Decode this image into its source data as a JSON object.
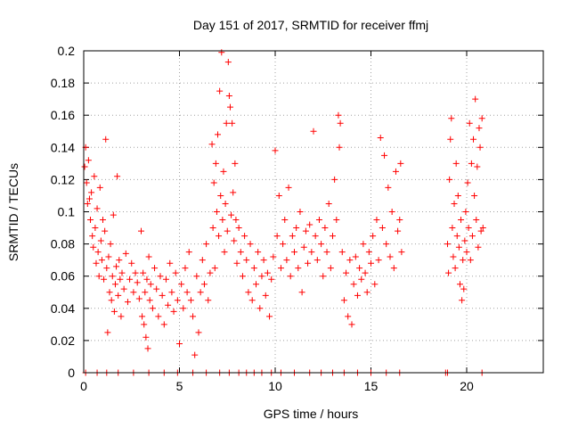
{
  "chart_data": {
    "type": "scatter",
    "title": "Day 151 of 2017, SRMTID for receiver ffmj",
    "xlabel": "GPS time / hours",
    "ylabel": "SRMTID / TECUs",
    "xlim": [
      0,
      24
    ],
    "ylim": [
      0,
      0.2
    ],
    "x_ticks": [
      0,
      5,
      10,
      15,
      20
    ],
    "x_tick_labels": [
      "0",
      "5",
      "10",
      "15",
      "20"
    ],
    "y_ticks": [
      0,
      0.02,
      0.04,
      0.06,
      0.08,
      0.1,
      0.12,
      0.14,
      0.16,
      0.18,
      0.2
    ],
    "y_tick_labels": [
      "0",
      "0.02",
      "0.04",
      "0.06",
      "0.08",
      "0.1",
      "0.12",
      "0.14",
      "0.16",
      "0.18",
      "0.2"
    ],
    "grid": true,
    "marker": "+",
    "color": "#ff0000",
    "series": [
      {
        "name": "SRMTID",
        "points": [
          [
            0.05,
            0.128
          ],
          [
            0.1,
            0.14
          ],
          [
            0.15,
            0.118
          ],
          [
            0.2,
            0.105
          ],
          [
            0.25,
            0.132
          ],
          [
            0.3,
            0.108
          ],
          [
            0.35,
            0.095
          ],
          [
            0.4,
            0.112
          ],
          [
            0.45,
            0.085
          ],
          [
            0.5,
            0.078
          ],
          [
            0.55,
            0.122
          ],
          [
            0.6,
            0.09
          ],
          [
            0.65,
            0.068
          ],
          [
            0.7,
            0.102
          ],
          [
            0.75,
            0.075
          ],
          [
            0.8,
            0.06
          ],
          [
            0.85,
            0.115
          ],
          [
            0.9,
            0.082
          ],
          [
            0.95,
            0.07
          ],
          [
            1.0,
            0.095
          ],
          [
            1.05,
            0.058
          ],
          [
            1.1,
            0.088
          ],
          [
            1.15,
            0.145
          ],
          [
            1.2,
            0.065
          ],
          [
            1.25,
            0.025
          ],
          [
            1.3,
            0.072
          ],
          [
            1.35,
            0.05
          ],
          [
            1.4,
            0.08
          ],
          [
            1.45,
            0.045
          ],
          [
            1.5,
            0.06
          ],
          [
            1.55,
            0.098
          ],
          [
            1.6,
            0.038
          ],
          [
            1.65,
            0.055
          ],
          [
            1.7,
            0.066
          ],
          [
            1.75,
            0.122
          ],
          [
            1.8,
            0.048
          ],
          [
            1.85,
            0.07
          ],
          [
            1.9,
            0.058
          ],
          [
            1.95,
            0.035
          ],
          [
            2.0,
            0.062
          ],
          [
            2.1,
            0.052
          ],
          [
            2.2,
            0.074
          ],
          [
            2.3,
            0.044
          ],
          [
            2.4,
            0.058
          ],
          [
            2.5,
            0.068
          ],
          [
            2.6,
            0.05
          ],
          [
            2.7,
            0.062
          ],
          [
            2.8,
            0.056
          ],
          [
            2.9,
            0.046
          ],
          [
            3.0,
            0.088
          ],
          [
            3.05,
            0.035
          ],
          [
            3.1,
            0.062
          ],
          [
            3.15,
            0.03
          ],
          [
            3.2,
            0.05
          ],
          [
            3.25,
            0.022
          ],
          [
            3.3,
            0.058
          ],
          [
            3.35,
            0.015
          ],
          [
            3.4,
            0.072
          ],
          [
            3.45,
            0.045
          ],
          [
            3.5,
            0.055
          ],
          [
            3.6,
            0.04
          ],
          [
            3.7,
            0.065
          ],
          [
            3.8,
            0.052
          ],
          [
            3.9,
            0.035
          ],
          [
            4.0,
            0.06
          ],
          [
            4.1,
            0.048
          ],
          [
            4.2,
            0.03
          ],
          [
            4.3,
            0.058
          ],
          [
            4.4,
            0.042
          ],
          [
            4.5,
            0.068
          ],
          [
            4.6,
            0.05
          ],
          [
            4.7,
            0.038
          ],
          [
            4.8,
            0.062
          ],
          [
            4.9,
            0.045
          ],
          [
            5.0,
            0.018
          ],
          [
            5.1,
            0.055
          ],
          [
            5.2,
            0.04
          ],
          [
            5.3,
            0.065
          ],
          [
            5.4,
            0.05
          ],
          [
            5.5,
            0.075
          ],
          [
            5.6,
            0.045
          ],
          [
            5.7,
            0.035
          ],
          [
            5.8,
            0.011
          ],
          [
            5.9,
            0.06
          ],
          [
            6.0,
            0.025
          ],
          [
            6.1,
            0.05
          ],
          [
            6.2,
            0.07
          ],
          [
            6.3,
            0.055
          ],
          [
            6.4,
            0.08
          ],
          [
            6.5,
            0.045
          ],
          [
            6.6,
            0.062
          ],
          [
            6.7,
            0.142
          ],
          [
            6.75,
            0.09
          ],
          [
            6.8,
            0.118
          ],
          [
            6.85,
            0.065
          ],
          [
            6.9,
            0.13
          ],
          [
            6.95,
            0.1
          ],
          [
            7.0,
            0.148
          ],
          [
            7.05,
            0.085
          ],
          [
            7.1,
            0.175
          ],
          [
            7.15,
            0.11
          ],
          [
            7.2,
            0.199
          ],
          [
            7.25,
            0.095
          ],
          [
            7.3,
            0.125
          ],
          [
            7.35,
            0.075
          ],
          [
            7.4,
            0.105
          ],
          [
            7.45,
            0.155
          ],
          [
            7.5,
            0.088
          ],
          [
            7.55,
            0.193
          ],
          [
            7.6,
            0.172
          ],
          [
            7.65,
            0.165
          ],
          [
            7.7,
            0.098
          ],
          [
            7.75,
            0.155
          ],
          [
            7.8,
            0.112
          ],
          [
            7.85,
            0.082
          ],
          [
            7.9,
            0.13
          ],
          [
            7.95,
            0.095
          ],
          [
            8.0,
            0.068
          ],
          [
            8.1,
            0.09
          ],
          [
            8.2,
            0.075
          ],
          [
            8.3,
            0.06
          ],
          [
            8.4,
            0.085
          ],
          [
            8.5,
            0.07
          ],
          [
            8.6,
            0.05
          ],
          [
            8.7,
            0.08
          ],
          [
            8.8,
            0.045
          ],
          [
            8.9,
            0.065
          ],
          [
            9.0,
            0.055
          ],
          [
            9.1,
            0.075
          ],
          [
            9.2,
            0.04
          ],
          [
            9.3,
            0.06
          ],
          [
            9.4,
            0.07
          ],
          [
            9.5,
            0.048
          ],
          [
            9.6,
            0.062
          ],
          [
            9.7,
            0.035
          ],
          [
            9.8,
            0.058
          ],
          [
            9.9,
            0.072
          ],
          [
            10.0,
            0.138
          ],
          [
            10.1,
            0.085
          ],
          [
            10.2,
            0.11
          ],
          [
            10.3,
            0.065
          ],
          [
            10.4,
            0.08
          ],
          [
            10.5,
            0.095
          ],
          [
            10.6,
            0.07
          ],
          [
            10.7,
            0.115
          ],
          [
            10.8,
            0.06
          ],
          [
            10.9,
            0.085
          ],
          [
            11.0,
            0.075
          ],
          [
            11.1,
            0.09
          ],
          [
            11.2,
            0.065
          ],
          [
            11.3,
            0.1
          ],
          [
            11.4,
            0.05
          ],
          [
            11.5,
            0.078
          ],
          [
            11.6,
            0.088
          ],
          [
            11.7,
            0.068
          ],
          [
            11.8,
            0.092
          ],
          [
            11.9,
            0.075
          ],
          [
            12.0,
            0.15
          ],
          [
            12.1,
            0.085
          ],
          [
            12.2,
            0.07
          ],
          [
            12.3,
            0.095
          ],
          [
            12.4,
            0.08
          ],
          [
            12.5,
            0.06
          ],
          [
            12.6,
            0.09
          ],
          [
            12.7,
            0.075
          ],
          [
            12.8,
            0.105
          ],
          [
            12.9,
            0.065
          ],
          [
            13.0,
            0.085
          ],
          [
            13.1,
            0.12
          ],
          [
            13.2,
            0.095
          ],
          [
            13.3,
            0.16
          ],
          [
            13.35,
            0.14
          ],
          [
            13.4,
            0.155
          ],
          [
            13.5,
            0.075
          ],
          [
            13.6,
            0.045
          ],
          [
            13.7,
            0.062
          ],
          [
            13.8,
            0.035
          ],
          [
            13.9,
            0.07
          ],
          [
            14.0,
            0.03
          ],
          [
            14.1,
            0.055
          ],
          [
            14.2,
            0.072
          ],
          [
            14.3,
            0.048
          ],
          [
            14.4,
            0.065
          ],
          [
            14.5,
            0.058
          ],
          [
            14.6,
            0.08
          ],
          [
            14.7,
            0.062
          ],
          [
            14.8,
            0.05
          ],
          [
            14.9,
            0.075
          ],
          [
            15.0,
            0.068
          ],
          [
            15.1,
            0.085
          ],
          [
            15.2,
            0.055
          ],
          [
            15.3,
            0.095
          ],
          [
            15.4,
            0.07
          ],
          [
            15.5,
            0.146
          ],
          [
            15.6,
            0.09
          ],
          [
            15.7,
            0.135
          ],
          [
            15.8,
            0.08
          ],
          [
            15.9,
            0.115
          ],
          [
            16.0,
            0.072
          ],
          [
            16.1,
            0.1
          ],
          [
            16.2,
            0.065
          ],
          [
            16.3,
            0.125
          ],
          [
            16.4,
            0.088
          ],
          [
            16.5,
            0.095
          ],
          [
            16.55,
            0.13
          ],
          [
            16.6,
            0.075
          ],
          [
            19.0,
            0.08
          ],
          [
            19.05,
            0.062
          ],
          [
            19.1,
            0.12
          ],
          [
            19.15,
            0.145
          ],
          [
            19.2,
            0.158
          ],
          [
            19.25,
            0.09
          ],
          [
            19.3,
            0.072
          ],
          [
            19.35,
            0.105
          ],
          [
            19.4,
            0.065
          ],
          [
            19.45,
            0.13
          ],
          [
            19.5,
            0.085
          ],
          [
            19.55,
            0.11
          ],
          [
            19.6,
            0.078
          ],
          [
            19.65,
            0.055
          ],
          [
            19.7,
            0.095
          ],
          [
            19.75,
            0.045
          ],
          [
            19.8,
            0.07
          ],
          [
            19.85,
            0.052
          ],
          [
            19.9,
            0.082
          ],
          [
            19.95,
            0.1
          ],
          [
            20.0,
            0.075
          ],
          [
            20.05,
            0.118
          ],
          [
            20.1,
            0.09
          ],
          [
            20.15,
            0.155
          ],
          [
            20.2,
            0.07
          ],
          [
            20.25,
            0.13
          ],
          [
            20.3,
            0.085
          ],
          [
            20.35,
            0.145
          ],
          [
            20.4,
            0.11
          ],
          [
            20.45,
            0.17
          ],
          [
            20.5,
            0.095
          ],
          [
            20.55,
            0.128
          ],
          [
            20.6,
            0.078
          ],
          [
            20.65,
            0.152
          ],
          [
            20.7,
            0.14
          ],
          [
            20.75,
            0.088
          ],
          [
            20.8,
            0.158
          ],
          [
            20.85,
            0.09
          ]
        ]
      }
    ],
    "zero_points_x": [
      0.1,
      0.7,
      1.2,
      1.8,
      2.6,
      3.4,
      4.2,
      4.9,
      5.7,
      6.4,
      7.1,
      7.6,
      8.1,
      8.5,
      8.9,
      9.3,
      9.8,
      10.3,
      11.0,
      11.8,
      12.4,
      13.0,
      13.6,
      14.3,
      15.0,
      15.8,
      16.5,
      18.9,
      19.0,
      20.8
    ]
  }
}
